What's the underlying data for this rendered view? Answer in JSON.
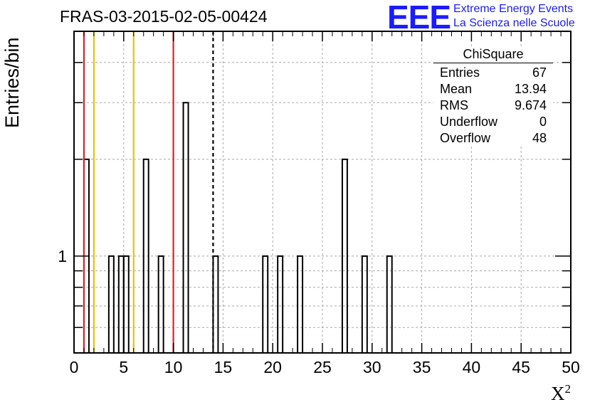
{
  "title": "FRAS-03-2015-02-05-00424",
  "logo": {
    "mark": "EEE",
    "line1": "Extreme Energy Events",
    "line2": "La Scienza nelle Scuole",
    "color": "#1b1bff"
  },
  "stats": {
    "name": "ChiSquare",
    "rows": [
      {
        "label": "Entries",
        "value": "67"
      },
      {
        "label": "Mean",
        "value": "13.94"
      },
      {
        "label": "RMS",
        "value": "9.674"
      },
      {
        "label": "Underflow",
        "value": "0"
      },
      {
        "label": "Overflow",
        "value": "48"
      }
    ]
  },
  "chart_data": {
    "type": "bar",
    "style": "histogram-outline",
    "xlabel": "X",
    "xlabel_superscript": "2",
    "ylabel": "Entries/bin",
    "xlim": [
      0,
      50
    ],
    "ylim": [
      0.5,
      5
    ],
    "yscale": "log",
    "grid": true,
    "bin_width": 0.5,
    "x_ticks": [
      0,
      5,
      10,
      15,
      20,
      25,
      30,
      35,
      40,
      45,
      50
    ],
    "y_tick_labels": [
      "1"
    ],
    "bins": [
      {
        "x": 1.0,
        "count": 2
      },
      {
        "x": 3.5,
        "count": 1
      },
      {
        "x": 4.5,
        "count": 1
      },
      {
        "x": 5.0,
        "count": 1
      },
      {
        "x": 7.0,
        "count": 2
      },
      {
        "x": 8.5,
        "count": 1
      },
      {
        "x": 11.0,
        "count": 3
      },
      {
        "x": 14.0,
        "count": 1
      },
      {
        "x": 19.0,
        "count": 1
      },
      {
        "x": 20.5,
        "count": 1
      },
      {
        "x": 22.5,
        "count": 1
      },
      {
        "x": 27.0,
        "count": 2
      },
      {
        "x": 29.0,
        "count": 1
      },
      {
        "x": 31.5,
        "count": 1
      }
    ],
    "reference_lines": [
      {
        "x": 1.0,
        "color": "#e02020",
        "style": "solid"
      },
      {
        "x": 2.0,
        "color": "#f0c000",
        "style": "solid"
      },
      {
        "x": 6.0,
        "color": "#f0c000",
        "style": "solid"
      },
      {
        "x": 10.0,
        "color": "#e02020",
        "style": "solid"
      },
      {
        "x": 14.0,
        "color": "#000000",
        "style": "dashed"
      }
    ]
  }
}
